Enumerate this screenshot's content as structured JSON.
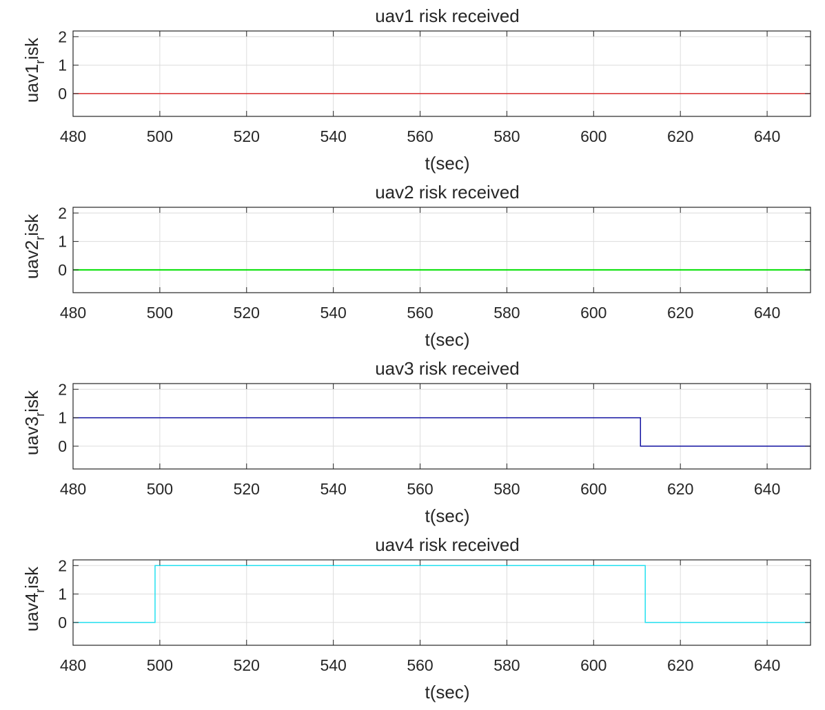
{
  "chart_data": [
    {
      "type": "line",
      "title": "uav1 risk received",
      "xlabel": "t(sec)",
      "ylabel_main": "uav1",
      "ylabel_sub": "r",
      "ylabel_tail": "isk",
      "xlim": [
        480,
        650
      ],
      "ylim": [
        -0.8,
        2.2
      ],
      "xticks": [
        "480",
        "500",
        "520",
        "540",
        "560",
        "580",
        "600",
        "620",
        "640"
      ],
      "yticks": [
        "0",
        "1",
        "2"
      ],
      "grid": true,
      "series": [
        {
          "color": "#d62728",
          "x": [
            480,
            650
          ],
          "y": [
            0,
            0
          ]
        }
      ]
    },
    {
      "type": "line",
      "title": "uav2 risk received",
      "xlabel": "t(sec)",
      "ylabel_main": "uav2",
      "ylabel_sub": "r",
      "ylabel_tail": "isk",
      "xlim": [
        480,
        650
      ],
      "ylim": [
        -0.8,
        2.2
      ],
      "xticks": [
        "480",
        "500",
        "520",
        "540",
        "560",
        "580",
        "600",
        "620",
        "640"
      ],
      "yticks": [
        "0",
        "1",
        "2"
      ],
      "grid": true,
      "series": [
        {
          "color": "#00e000",
          "x": [
            480,
            650
          ],
          "y": [
            0,
            0
          ]
        }
      ]
    },
    {
      "type": "line",
      "title": "uav3 risk received",
      "xlabel": "t(sec)",
      "ylabel_main": "uav3",
      "ylabel_sub": "r",
      "ylabel_tail": "isk",
      "xlim": [
        480,
        650
      ],
      "ylim": [
        -0.8,
        2.2
      ],
      "xticks": [
        "480",
        "500",
        "520",
        "540",
        "560",
        "580",
        "600",
        "620",
        "640"
      ],
      "yticks": [
        "0",
        "1",
        "2"
      ],
      "grid": true,
      "series": [
        {
          "color": "#1010a0",
          "x": [
            480,
            610.8,
            610.8,
            650
          ],
          "y": [
            1,
            1,
            0,
            0
          ]
        }
      ]
    },
    {
      "type": "line",
      "title": "uav4 risk received",
      "xlabel": "t(sec)",
      "ylabel_main": "uav4",
      "ylabel_sub": "r",
      "ylabel_tail": "isk",
      "xlim": [
        480,
        650
      ],
      "ylim": [
        -0.8,
        2.2
      ],
      "xticks": [
        "480",
        "500",
        "520",
        "540",
        "560",
        "580",
        "600",
        "620",
        "640"
      ],
      "yticks": [
        "0",
        "1",
        "2"
      ],
      "grid": true,
      "series": [
        {
          "color": "#22e0f0",
          "x": [
            480,
            498.9,
            498.9,
            611.9,
            611.9,
            650
          ],
          "y": [
            0,
            0,
            2,
            2,
            0,
            0
          ]
        }
      ]
    }
  ]
}
